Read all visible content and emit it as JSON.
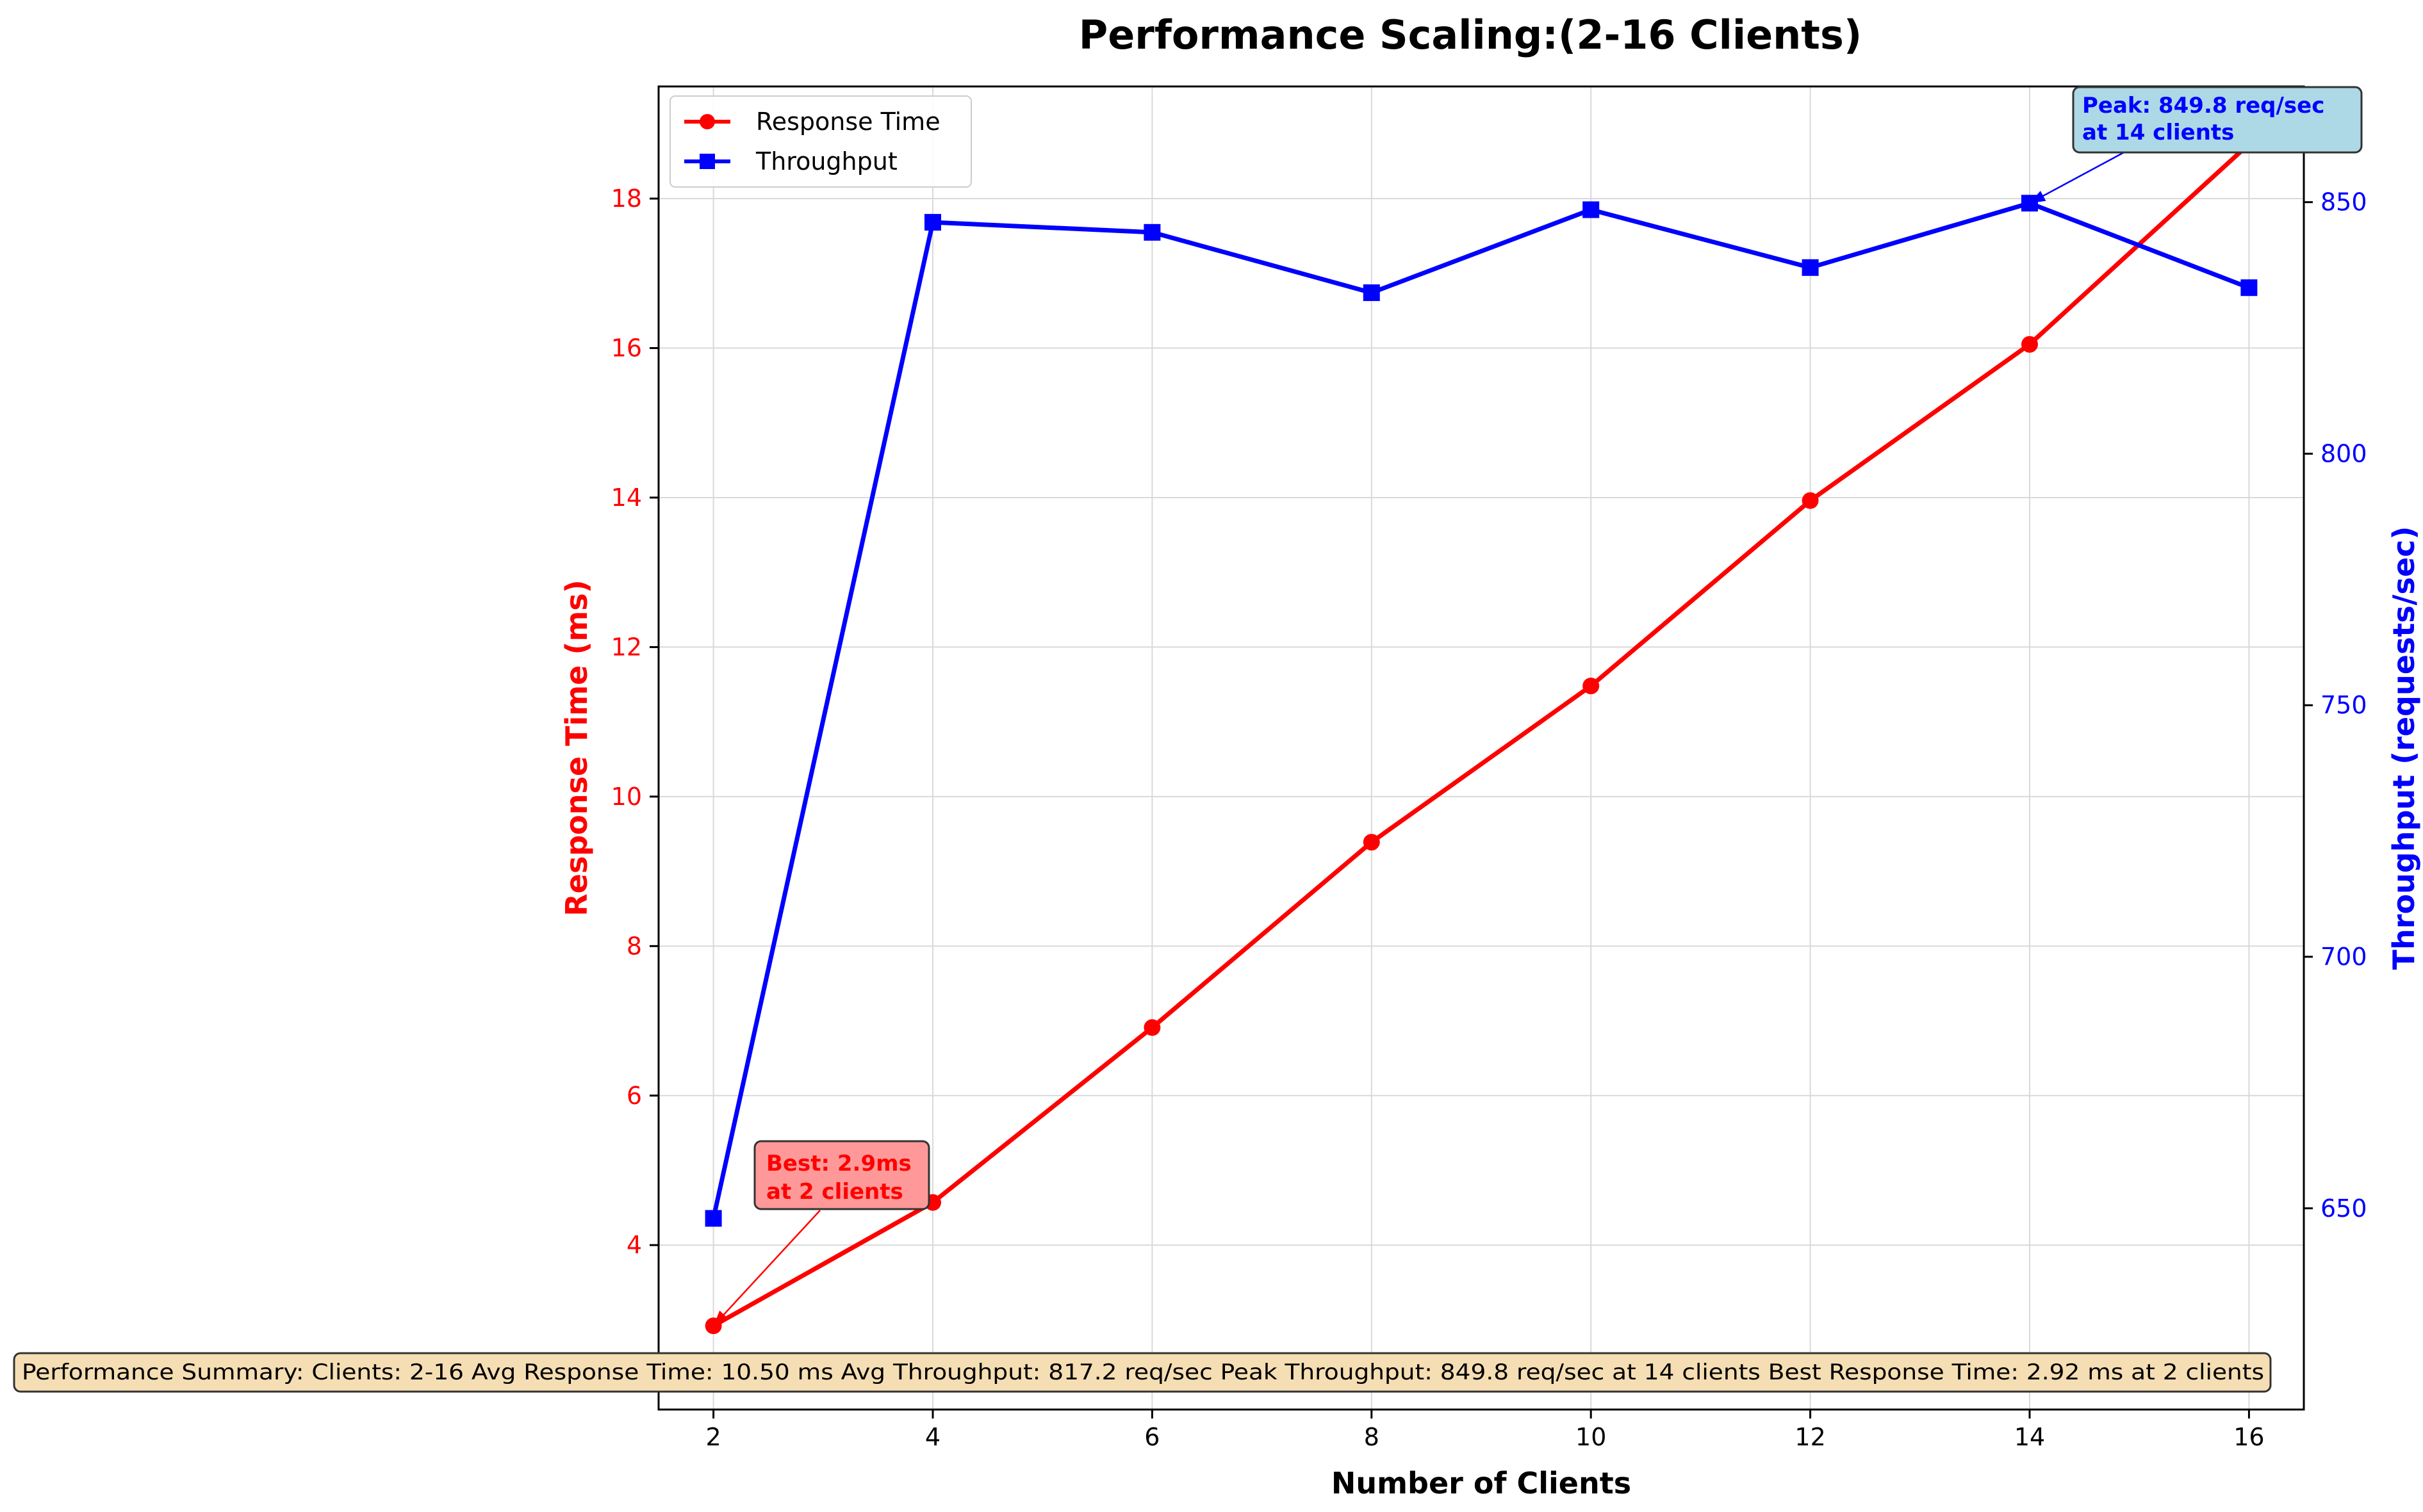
{
  "chart_data": {
    "type": "line",
    "title": "Performance Scaling:(2-16 Clients)",
    "xlabel": "Number of Clients",
    "ylabel_left": "Response Time (ms)",
    "ylabel_right": "Throughput (requests/sec)",
    "x": [
      2,
      4,
      6,
      8,
      10,
      12,
      14,
      16
    ],
    "xlim": [
      1.5,
      16.5
    ],
    "xticks": [
      "2",
      "4",
      "6",
      "8",
      "10",
      "12",
      "14",
      "16"
    ],
    "ylim_left": [
      1.8,
      19.5
    ],
    "yticks_left": [
      "4",
      "6",
      "8",
      "10",
      "12",
      "14",
      "16",
      "18"
    ],
    "ylim_right": [
      610,
      873
    ],
    "yticks_right": [
      "650",
      "700",
      "750",
      "800",
      "850"
    ],
    "grid": true,
    "legend_position": "top-left",
    "series": [
      {
        "name": "Response Time",
        "axis": "left",
        "color": "#ff0000",
        "marker": "circle",
        "values": [
          2.92,
          4.57,
          6.91,
          9.39,
          11.48,
          13.96,
          16.05,
          18.73
        ]
      },
      {
        "name": "Throughput",
        "axis": "right",
        "color": "#0000ff",
        "marker": "square",
        "values": [
          648,
          846,
          844,
          832,
          848.5,
          837,
          849.8,
          833
        ]
      }
    ],
    "annotations": {
      "best": {
        "line1": "Best: 2.9ms",
        "line2": "at 2 clients",
        "color": "#ff0000",
        "box_color": "#ff9999",
        "point_x": 2,
        "point_y": 2.92
      },
      "peak": {
        "line1": "Peak: 849.8 req/sec",
        "line2": "at 14 clients",
        "color": "#0000ff",
        "box_color": "#add8e6",
        "point_x": 14,
        "point_y": 849.8
      }
    },
    "summary": "Performance Summary: Clients: 2-16 Avg Response Time: 10.50 ms Avg Throughput: 817.2 req/sec Peak Throughput: 849.8 req/sec at 14 clients Best Response Time: 2.92 ms at 2 clients",
    "summary_box_color": "#f5deb3"
  }
}
